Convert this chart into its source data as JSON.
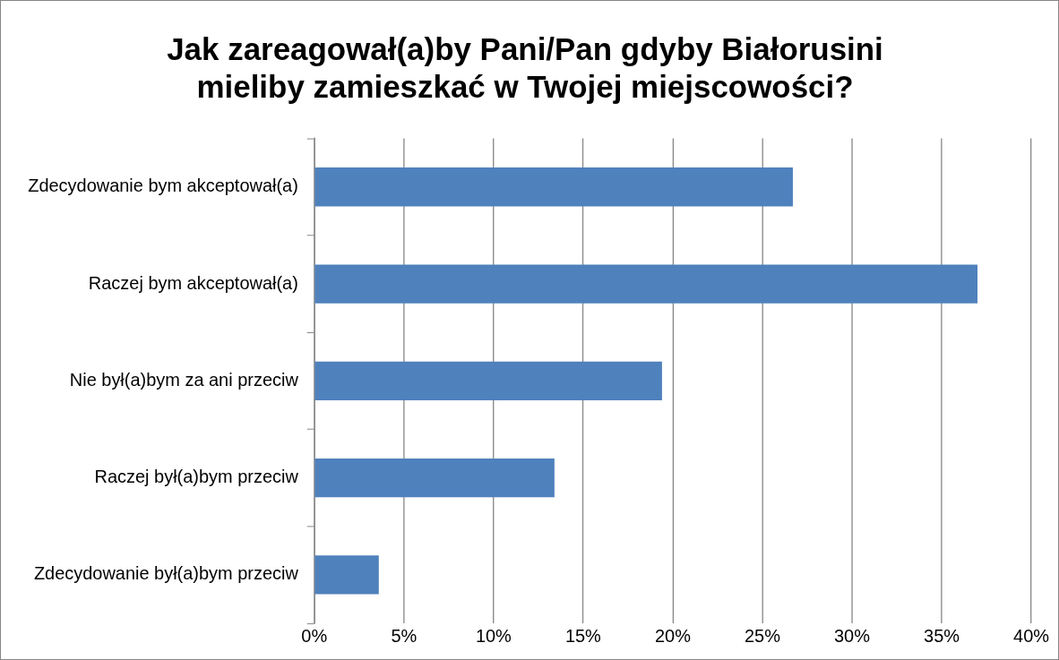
{
  "chart_data": {
    "type": "bar",
    "orientation": "horizontal",
    "title": "Jak zareagował(a)by Pani/Pan gdyby Białorusini\nmieliby zamieszkać w Twojej miejscowości?",
    "categories": [
      "Zdecydowanie bym akceptował(a)",
      "Raczej bym akceptował(a)",
      "Nie był(a)bym za ani przeciw",
      "Raczej był(a)bym przeciw",
      "Zdecydowanie był(a)bym przeciw"
    ],
    "values": [
      26.7,
      37.0,
      19.4,
      13.4,
      3.6
    ],
    "color": "#4f81bd",
    "xlim": [
      0,
      40
    ],
    "xticks": [
      {
        "value": 0,
        "label": "0%"
      },
      {
        "value": 5,
        "label": "5%"
      },
      {
        "value": 10,
        "label": "10%"
      },
      {
        "value": 15,
        "label": "15%"
      },
      {
        "value": 20,
        "label": "20%"
      },
      {
        "value": 25,
        "label": "25%"
      },
      {
        "value": 30,
        "label": "30%"
      },
      {
        "value": 35,
        "label": "35%"
      },
      {
        "value": 40,
        "label": "40%"
      }
    ],
    "grid": "x",
    "legend": false
  }
}
